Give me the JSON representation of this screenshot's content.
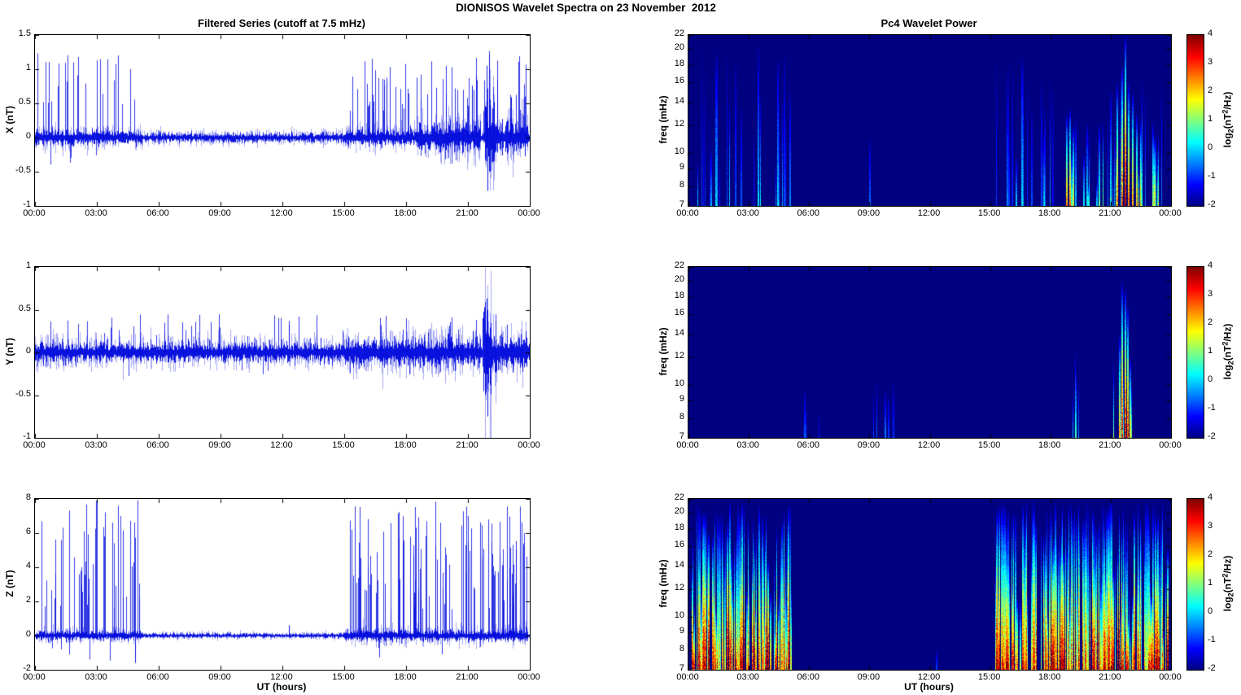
{
  "figure_title": "DIONISOS Wavelet Spectra on 23 November  2012",
  "x_axis": {
    "label": "UT (hours)",
    "tick_hours": [
      0,
      3,
      6,
      9,
      12,
      15,
      18,
      21,
      24
    ],
    "tick_labels": [
      "00:00",
      "03:00",
      "06:00",
      "09:00",
      "12:00",
      "15:00",
      "18:00",
      "21:00",
      "00:00"
    ]
  },
  "colorbar": {
    "range": [
      -2,
      4
    ],
    "ticks": [
      4,
      3,
      2,
      1,
      0,
      -1,
      -2
    ],
    "label_segments": [
      {
        "t": "log"
      },
      {
        "t": "2",
        "pos": "sub"
      },
      {
        "t": "(nT"
      },
      {
        "t": "2",
        "pos": "sup"
      },
      {
        "t": "/Hz)"
      }
    ]
  },
  "palette": {
    "line_color": "#0008DC",
    "plot_background": "#FFFFFF",
    "heat_background": "#00008F"
  },
  "chart_data": [
    {
      "type": "line",
      "title": "Filtered Series (cutoff at 7.5 mHz)",
      "ylabel": "X (nT)",
      "ylim": [
        -1,
        1.5
      ],
      "yticks": [
        1.5,
        1,
        0.5,
        0,
        -0.5,
        -1
      ],
      "x_range_hours": [
        0,
        24
      ],
      "noise_std": 0.03,
      "noise_bursts": [
        {
          "t_range": [
            0,
            5.2
          ],
          "std": 0.05
        },
        {
          "t_range": [
            15,
            18.5
          ],
          "std": 0.055
        },
        {
          "t_range": [
            18.5,
            21.6
          ],
          "std": 0.09
        },
        {
          "t_range": [
            21.8,
            22.3
          ],
          "std": 0.27
        },
        {
          "t_range": [
            22.3,
            23.9
          ],
          "std": 0.11
        }
      ],
      "spike_groups": [
        {
          "t_range": [
            0.1,
            5.1
          ],
          "count": 30,
          "amp_range": [
            0.4,
            1.35
          ],
          "neg_frac": 0.15,
          "neg_amp_range": [
            0.1,
            0.45
          ]
        },
        {
          "t_range": [
            15.05,
            23.9
          ],
          "count": 85,
          "amp_range": [
            0.35,
            1.35
          ],
          "neg_frac": 0.12,
          "neg_amp_range": [
            0.1,
            0.4
          ]
        }
      ],
      "events": [
        {
          "t": 21.9,
          "amp": 1.05
        },
        {
          "t": 21.95,
          "amp": -0.78
        },
        {
          "t": 22.02,
          "amp": 0.85
        }
      ]
    },
    {
      "type": "line",
      "ylabel": "Y (nT)",
      "ylim": [
        -1,
        1
      ],
      "yticks": [
        1,
        0.5,
        0,
        -0.5,
        -1
      ],
      "x_range_hours": [
        0,
        24
      ],
      "noise_std": 0.05,
      "noise_bursts": [
        {
          "t_range": [
            15,
            21.6
          ],
          "std": 0.075
        },
        {
          "t_range": [
            21.7,
            22.15
          ],
          "std": 0.28
        },
        {
          "t_range": [
            22.15,
            23.9
          ],
          "std": 0.095
        }
      ],
      "spike_groups": [
        {
          "t_range": [
            0.2,
            23.8
          ],
          "count": 85,
          "amp_range": [
            0.12,
            0.45
          ],
          "neg_frac": 0.25,
          "neg_amp_range": [
            0.08,
            0.3
          ]
        }
      ],
      "events": [
        {
          "t": 21.9,
          "amp": 0.63
        },
        {
          "t": 21.96,
          "amp": -0.75
        }
      ]
    },
    {
      "type": "line",
      "ylabel": "Z (nT)",
      "ylim": [
        -2,
        8
      ],
      "yticks": [
        8,
        6,
        4,
        2,
        0,
        -2
      ],
      "x_range_hours": [
        0,
        24
      ],
      "noise_std": 0.06,
      "noise_bursts": [
        {
          "t_range": [
            0,
            5.2
          ],
          "std": 0.12
        },
        {
          "t_range": [
            15,
            23.9
          ],
          "std": 0.15
        }
      ],
      "spike_groups": [
        {
          "t_range": [
            0.2,
            5.1
          ],
          "count": 55,
          "amp_range": [
            1.5,
            8
          ],
          "neg_frac": 0.08,
          "neg_amp_range": [
            0.3,
            1.6
          ]
        },
        {
          "t_range": [
            15.2,
            23.9
          ],
          "count": 115,
          "amp_range": [
            1.5,
            8
          ],
          "neg_frac": 0.06,
          "neg_amp_range": [
            0.3,
            1.3
          ]
        }
      ],
      "events": [
        {
          "t": 4.85,
          "amp": -1.6
        },
        {
          "t": 12.3,
          "amp": 0.6
        }
      ]
    },
    {
      "type": "heatmap",
      "title": "Pc4 Wavelet Power",
      "ylabel": "freq (mHz)",
      "ylim": [
        7,
        22
      ],
      "yscale": "log",
      "yticks": [
        22,
        20,
        18,
        16,
        14,
        12,
        10,
        9,
        8,
        7
      ],
      "zlim": [
        -2,
        4
      ],
      "background_value": -2,
      "streak_groups": [
        {
          "t_range": [
            0.3,
            5.1
          ],
          "count": 26,
          "value_range": [
            -1.3,
            0.2
          ],
          "fmax_range": [
            9,
            21
          ]
        },
        {
          "t_range": [
            15.1,
            18.4
          ],
          "count": 20,
          "value_range": [
            -1.3,
            0.1
          ],
          "fmax_range": [
            9,
            20
          ]
        },
        {
          "t_range": [
            18.5,
            20.6
          ],
          "count": 12,
          "value_range": [
            -0.8,
            1.2
          ],
          "fmax_range": [
            8,
            13
          ]
        },
        {
          "t_range": [
            20.8,
            23.8
          ],
          "count": 20,
          "value_range": [
            -0.6,
            2
          ],
          "fmax_range": [
            9,
            17
          ]
        }
      ],
      "features": [
        {
          "t": 9,
          "fmax": 11,
          "value": -0.6
        },
        {
          "t": 18.78,
          "fmax": 13,
          "value": 2.3
        },
        {
          "t": 18.95,
          "fmax": 13.5,
          "value": 2.6
        },
        {
          "t": 19.1,
          "fmax": 12,
          "value": 1.8
        },
        {
          "t": 21.3,
          "fmax": 16,
          "value": 2.4
        },
        {
          "t": 21.55,
          "fmax": 18,
          "value": 3
        },
        {
          "t": 21.7,
          "fmax": 22,
          "value": 3.7
        },
        {
          "t": 21.85,
          "fmax": 16,
          "value": 2.8
        },
        {
          "t": 22.05,
          "fmax": 15,
          "value": 2.4
        },
        {
          "t": 22.25,
          "fmax": 13,
          "value": 2
        }
      ]
    },
    {
      "type": "heatmap",
      "ylabel": "freq (mHz)",
      "ylim": [
        7,
        22
      ],
      "yscale": "log",
      "yticks": [
        22,
        20,
        18,
        16,
        14,
        12,
        10,
        9,
        8,
        7
      ],
      "zlim": [
        -2,
        4
      ],
      "background_value": -2,
      "streak_groups": [
        {
          "t_range": [
            5.7,
            6.5
          ],
          "count": 4,
          "value_range": [
            -1.2,
            -0.4
          ],
          "fmax_range": [
            8,
            10
          ]
        },
        {
          "t_range": [
            8.6,
            10.3
          ],
          "count": 5,
          "value_range": [
            -1.1,
            -0.2
          ],
          "fmax_range": [
            9,
            12
          ]
        },
        {
          "t_range": [
            18.9,
            19.4
          ],
          "count": 4,
          "value_range": [
            -0.6,
            0.6
          ],
          "fmax_range": [
            9,
            13
          ]
        },
        {
          "t_range": [
            20.9,
            22.1
          ],
          "count": 8,
          "value_range": [
            -0.4,
            1.2
          ],
          "fmax_range": [
            9,
            14
          ]
        }
      ],
      "features": [
        {
          "t": 21.4,
          "fmax": 14,
          "value": 2.2
        },
        {
          "t": 21.55,
          "fmax": 20,
          "value": 3.2
        },
        {
          "t": 21.68,
          "fmax": 19,
          "value": 3.4
        },
        {
          "t": 21.8,
          "fmax": 17,
          "value": 2.9
        },
        {
          "t": 21.95,
          "fmax": 12,
          "value": 2
        }
      ]
    },
    {
      "type": "heatmap",
      "ylabel": "freq (mHz)",
      "ylim": [
        7,
        22
      ],
      "yscale": "log",
      "yticks": [
        22,
        20,
        18,
        16,
        14,
        12,
        10,
        9,
        8,
        7
      ],
      "zlim": [
        -2,
        4
      ],
      "background_value": -2,
      "streak_groups": [
        {
          "t_range": [
            0.15,
            5.1
          ],
          "count": 130,
          "value_range": [
            0.8,
            4
          ],
          "fmax_range": [
            9,
            22
          ]
        },
        {
          "t_range": [
            15.2,
            23.9
          ],
          "count": 240,
          "value_range": [
            0.8,
            4
          ],
          "fmax_range": [
            9,
            22
          ]
        }
      ],
      "features": [
        {
          "t": 12.3,
          "fmax": 8,
          "value": -0.8
        }
      ]
    }
  ]
}
